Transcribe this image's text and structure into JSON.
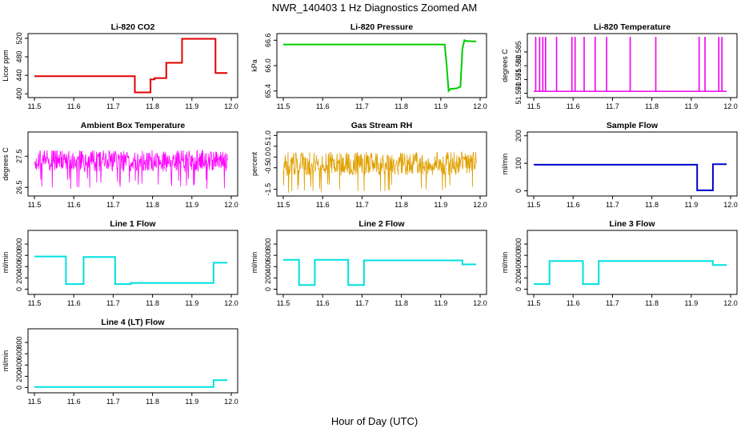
{
  "page": {
    "title": "NWR_140403  1 Hz Diagnostics Zoomed AM",
    "xlabel": "Hour of Day (UTC)"
  },
  "chart_data": [
    {
      "type": "line",
      "title": "Li-820 CO2",
      "ylabel": "Licor ppm",
      "color": "#e00000",
      "xlim": [
        11.5,
        12.0
      ],
      "ylim": [
        397,
        525
      ],
      "xticks": [
        "11.5",
        "11.6",
        "11.7",
        "11.8",
        "11.9",
        "12.0"
      ],
      "yticks": [
        "400",
        "440",
        "480",
        "520"
      ],
      "series": [
        {
          "x": [
            11.5,
            11.755,
            11.755,
            11.795,
            11.795,
            11.805,
            11.805,
            11.835,
            11.835,
            11.875,
            11.875,
            11.96,
            11.96,
            11.99
          ],
          "y": [
            438,
            438,
            403,
            403,
            431,
            431,
            434,
            434,
            467,
            467,
            519,
            519,
            445,
            445
          ]
        }
      ]
    },
    {
      "type": "line",
      "title": "Li-820 Pressure",
      "ylabel": "kPa",
      "color": "#00cc00",
      "xlim": [
        11.5,
        12.0
      ],
      "ylim": [
        65.3,
        66.7
      ],
      "xticks": [
        "11.5",
        "11.6",
        "11.7",
        "11.8",
        "11.9",
        "12.0"
      ],
      "yticks": [
        "65.4",
        "66.0",
        "66.6"
      ],
      "series": [
        {
          "x": [
            11.5,
            11.91,
            11.915,
            11.92,
            11.925,
            11.94,
            11.95,
            11.955,
            11.96,
            11.965,
            11.99
          ],
          "y": [
            66.5,
            66.5,
            66.0,
            65.4,
            65.45,
            65.46,
            65.5,
            66.4,
            66.6,
            66.58,
            66.57
          ]
        }
      ]
    },
    {
      "type": "line",
      "title": "Li-820 Temperature",
      "ylabel": "degrees C",
      "color": "#ee00ee",
      "xlim": [
        11.5,
        12.0
      ],
      "ylim": [
        51.5693,
        51.5908
      ],
      "xticks": [
        "11.5",
        "11.6",
        "11.7",
        "11.8",
        "11.9",
        "12.0"
      ],
      "yticks": [
        "51.570",
        "51.575",
        "51.580",
        "51.585"
      ],
      "base": 51.5707,
      "spike_top": 51.5905,
      "spikes": [
        11.505,
        11.515,
        11.523,
        11.53,
        11.558,
        11.597,
        11.605,
        11.628,
        11.656,
        11.685,
        11.745,
        11.81,
        11.92,
        11.935,
        11.97,
        11.978
      ]
    },
    {
      "type": "line",
      "title": "Ambient Box Temperature",
      "ylabel": "degrees C",
      "color": "#ff00ff",
      "xlim": [
        11.5,
        12.0
      ],
      "ylim": [
        26.3,
        28.2
      ],
      "xticks": [
        "11.5",
        "11.6",
        "11.7",
        "11.8",
        "11.9",
        "12.0"
      ],
      "yticks": [
        "26.5",
        "27.5"
      ],
      "series": [
        {
          "center": 27.35,
          "amplitude": 0.35
        }
      ]
    },
    {
      "type": "line",
      "title": "Gas Stream RH",
      "ylabel": "percent",
      "color": "#e0a000",
      "xlim": [
        11.5,
        12.0
      ],
      "ylim": [
        -1.7,
        1.05
      ],
      "xticks": [
        "11.5",
        "11.6",
        "11.7",
        "11.8",
        "11.9",
        "12.0"
      ],
      "yticks": [
        "-1.5",
        "-0.5",
        "0.0",
        "0.5",
        "1.0"
      ],
      "series": [
        {
          "center": -0.3,
          "amplitude": 0.55
        }
      ]
    },
    {
      "type": "line",
      "title": "Sample Flow",
      "ylabel": "ml/min",
      "color": "#0000cc",
      "xlim": [
        11.5,
        12.0
      ],
      "ylim": [
        -10,
        205
      ],
      "xticks": [
        "11.5",
        "11.6",
        "11.7",
        "11.8",
        "11.9",
        "12.0"
      ],
      "yticks": [
        "0",
        "100",
        "200"
      ],
      "series": [
        {
          "x": [
            11.5,
            11.915,
            11.915,
            11.955,
            11.955,
            11.99
          ],
          "y": [
            95,
            95,
            2,
            2,
            97,
            97
          ]
        }
      ]
    },
    {
      "type": "line",
      "title": "Line 1 Flow",
      "ylabel": "ml/min",
      "color": "#00e0e0",
      "xlim": [
        11.5,
        12.0
      ],
      "ylim": [
        -50,
        1000
      ],
      "xticks": [
        "11.5",
        "11.6",
        "11.7",
        "11.8",
        "11.9",
        "12.0"
      ],
      "yticks": [
        "0",
        "200",
        "400",
        "600",
        "800"
      ],
      "series": [
        {
          "x": [
            11.5,
            11.58,
            11.58,
            11.625,
            11.625,
            11.705,
            11.705,
            11.745,
            11.745,
            11.955,
            11.955,
            11.99
          ],
          "y": [
            580,
            580,
            90,
            90,
            570,
            570,
            90,
            90,
            110,
            110,
            470,
            470
          ]
        }
      ]
    },
    {
      "type": "line",
      "title": "Line 2 Flow",
      "ylabel": "ml/min",
      "color": "#00e0e0",
      "xlim": [
        11.5,
        12.0
      ],
      "ylim": [
        -50,
        1000
      ],
      "xticks": [
        "11.5",
        "11.6",
        "11.7",
        "11.8",
        "11.9",
        "12.0"
      ],
      "yticks": [
        "0",
        "200",
        "400",
        "600",
        "800"
      ],
      "series": [
        {
          "x": [
            11.5,
            11.54,
            11.54,
            11.58,
            11.58,
            11.665,
            11.665,
            11.705,
            11.705,
            11.955,
            11.955,
            11.99
          ],
          "y": [
            520,
            520,
            75,
            75,
            520,
            520,
            75,
            75,
            510,
            510,
            440,
            440
          ]
        }
      ]
    },
    {
      "type": "line",
      "title": "Line 3 Flow",
      "ylabel": "ml/min",
      "color": "#00e0e0",
      "xlim": [
        11.5,
        12.0
      ],
      "ylim": [
        -50,
        1000
      ],
      "xticks": [
        "11.5",
        "11.6",
        "11.7",
        "11.8",
        "11.9",
        "12.0"
      ],
      "yticks": [
        "0",
        "200",
        "400",
        "600",
        "800"
      ],
      "series": [
        {
          "x": [
            11.5,
            11.54,
            11.54,
            11.625,
            11.625,
            11.665,
            11.665,
            11.955,
            11.955,
            11.99
          ],
          "y": [
            90,
            90,
            500,
            500,
            90,
            90,
            500,
            500,
            430,
            430
          ]
        }
      ]
    },
    {
      "type": "line",
      "title": "Line 4 (LT) Flow",
      "ylabel": "ml/min",
      "color": "#00e0e0",
      "xlim": [
        11.5,
        12.0
      ],
      "ylim": [
        -50,
        1000
      ],
      "xticks": [
        "11.5",
        "11.6",
        "11.7",
        "11.8",
        "11.9",
        "12.0"
      ],
      "yticks": [
        "0",
        "200",
        "400",
        "600",
        "800"
      ],
      "series": [
        {
          "x": [
            11.5,
            11.955,
            11.955,
            11.99
          ],
          "y": [
            10,
            10,
            130,
            130
          ]
        }
      ]
    }
  ]
}
